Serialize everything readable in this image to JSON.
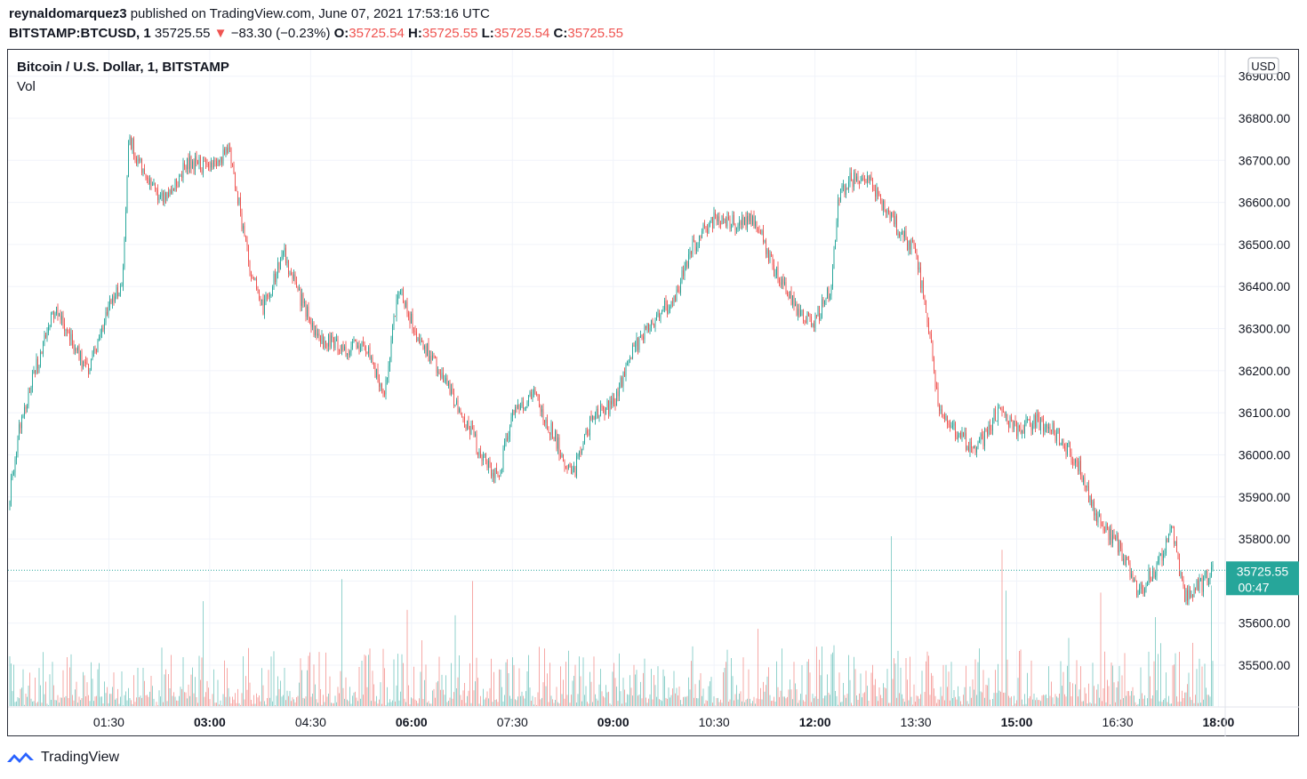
{
  "header": {
    "author": "reynaldomarquez3",
    "published": "published on TradingView.com, June 07, 2021 17:53:16 UTC",
    "symbol": "BITSTAMP:BTCUSD, 1",
    "price": "35725.55",
    "change_arrow": "▼",
    "change": "−83.30 (−0.23%)",
    "o_label": "O:",
    "o_value": "35725.54",
    "h_label": "H:",
    "h_value": "35725.55",
    "l_label": "L:",
    "l_value": "35725.54",
    "c_label": "C:",
    "c_value": "35725.55"
  },
  "legend": {
    "title": "Bitcoin / U.S. Dollar, 1, BITSTAMP",
    "volume": "Vol"
  },
  "currency_badge": "USD",
  "last_price_label": {
    "price": "35725.55",
    "countdown": "00:47"
  },
  "footer": {
    "brand": "TradingView"
  },
  "colors": {
    "up": "#26a69a",
    "down": "#ef5350",
    "grid": "#f0f3fa",
    "axis_text": "#131722"
  },
  "chart_data": {
    "type": "candlestick",
    "interval": "1 minute",
    "title": "Bitcoin / U.S. Dollar, 1, BITSTAMP",
    "ylim": [
      35400,
      36900
    ],
    "y_ticks": [
      "35500.00",
      "35600.00",
      "35700.00",
      "35800.00",
      "35900.00",
      "36000.00",
      "36100.00",
      "36200.00",
      "36300.00",
      "36400.00",
      "36500.00",
      "36600.00",
      "36700.00",
      "36800.00",
      "36900.00"
    ],
    "y_tick_values": [
      35500,
      35600,
      35700,
      35800,
      35900,
      36000,
      36100,
      36200,
      36300,
      36400,
      36500,
      36600,
      36700,
      36800,
      36900
    ],
    "x_ticks": [
      {
        "label": "01:30",
        "bold": false
      },
      {
        "label": "03:00",
        "bold": true
      },
      {
        "label": "04:30",
        "bold": false
      },
      {
        "label": "06:00",
        "bold": true
      },
      {
        "label": "07:30",
        "bold": false
      },
      {
        "label": "09:00",
        "bold": true
      },
      {
        "label": "10:30",
        "bold": false
      },
      {
        "label": "12:00",
        "bold": true
      },
      {
        "label": "13:30",
        "bold": false
      },
      {
        "label": "15:00",
        "bold": true
      },
      {
        "label": "16:30",
        "bold": false
      },
      {
        "label": "18:00",
        "bold": true
      }
    ],
    "time_range_hours": [
      0.0,
      18.1
    ],
    "x_tick_hours": [
      1.5,
      3.0,
      4.5,
      6.0,
      7.5,
      9.0,
      10.5,
      12.0,
      13.5,
      15.0,
      16.5,
      18.0
    ],
    "price_path": [
      [
        0.0,
        35880
      ],
      [
        0.15,
        36050
      ],
      [
        0.4,
        36200
      ],
      [
        0.7,
        36350
      ],
      [
        1.0,
        36250
      ],
      [
        1.2,
        36200
      ],
      [
        1.5,
        36350
      ],
      [
        1.7,
        36420
      ],
      [
        1.8,
        36750
      ],
      [
        2.0,
        36680
      ],
      [
        2.3,
        36600
      ],
      [
        2.7,
        36700
      ],
      [
        3.0,
        36680
      ],
      [
        3.3,
        36720
      ],
      [
        3.45,
        36580
      ],
      [
        3.6,
        36450
      ],
      [
        3.8,
        36350
      ],
      [
        4.1,
        36480
      ],
      [
        4.4,
        36350
      ],
      [
        4.6,
        36280
      ],
      [
        5.0,
        36250
      ],
      [
        5.3,
        36260
      ],
      [
        5.6,
        36150
      ],
      [
        5.8,
        36400
      ],
      [
        6.1,
        36280
      ],
      [
        6.5,
        36180
      ],
      [
        6.8,
        36080
      ],
      [
        7.1,
        35980
      ],
      [
        7.3,
        35950
      ],
      [
        7.5,
        36100
      ],
      [
        7.8,
        36150
      ],
      [
        8.1,
        36050
      ],
      [
        8.4,
        35950
      ],
      [
        8.7,
        36100
      ],
      [
        9.0,
        36120
      ],
      [
        9.3,
        36250
      ],
      [
        9.6,
        36320
      ],
      [
        9.9,
        36370
      ],
      [
        10.2,
        36500
      ],
      [
        10.5,
        36560
      ],
      [
        10.8,
        36550
      ],
      [
        11.1,
        36560
      ],
      [
        11.4,
        36440
      ],
      [
        11.7,
        36350
      ],
      [
        12.0,
        36320
      ],
      [
        12.25,
        36400
      ],
      [
        12.35,
        36620
      ],
      [
        12.5,
        36650
      ],
      [
        12.8,
        36660
      ],
      [
        13.0,
        36600
      ],
      [
        13.3,
        36520
      ],
      [
        13.5,
        36480
      ],
      [
        13.7,
        36300
      ],
      [
        13.85,
        36100
      ],
      [
        14.1,
        36050
      ],
      [
        14.4,
        36010
      ],
      [
        14.7,
        36100
      ],
      [
        15.0,
        36060
      ],
      [
        15.3,
        36080
      ],
      [
        15.6,
        36050
      ],
      [
        15.9,
        35980
      ],
      [
        16.2,
        35850
      ],
      [
        16.5,
        35790
      ],
      [
        16.8,
        35670
      ],
      [
        17.1,
        35740
      ],
      [
        17.3,
        35830
      ],
      [
        17.5,
        35660
      ],
      [
        17.8,
        35700
      ],
      [
        17.9,
        35726
      ]
    ],
    "last_price": 35725.55,
    "volume_shown": true
  }
}
